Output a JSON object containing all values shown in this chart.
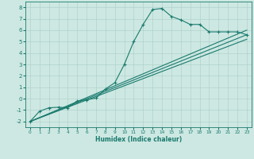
{
  "xlabel": "Humidex (Indice chaleur)",
  "xlim": [
    -0.5,
    23.5
  ],
  "ylim": [
    -2.5,
    8.5
  ],
  "xticks": [
    0,
    1,
    2,
    3,
    4,
    5,
    6,
    7,
    8,
    9,
    10,
    11,
    12,
    13,
    14,
    15,
    16,
    17,
    18,
    19,
    20,
    21,
    22,
    23
  ],
  "yticks": [
    -2,
    -1,
    0,
    1,
    2,
    3,
    4,
    5,
    6,
    7,
    8
  ],
  "bg_color": "#cde8e2",
  "line_color": "#1a7a6e",
  "grid_color": "#aacec7",
  "curve_x": [
    0,
    1,
    2,
    3,
    4,
    5,
    6,
    7,
    8,
    9,
    10,
    11,
    12,
    13,
    14,
    15,
    16,
    17,
    18,
    19,
    20,
    21,
    22,
    23
  ],
  "curve_y": [
    -2.0,
    -1.1,
    -0.8,
    -0.75,
    -0.8,
    -0.2,
    -0.1,
    0.05,
    0.85,
    1.4,
    3.0,
    5.0,
    6.5,
    7.8,
    7.9,
    7.2,
    6.9,
    6.5,
    6.5,
    5.85,
    5.85,
    5.85,
    5.85,
    5.6
  ],
  "line2_x": [
    0,
    23
  ],
  "line2_y": [
    -2.0,
    6.0
  ],
  "line3_x": [
    0,
    23
  ],
  "line3_y": [
    -2.0,
    5.6
  ],
  "line4_x": [
    0,
    23
  ],
  "line4_y": [
    -2.0,
    5.2
  ]
}
